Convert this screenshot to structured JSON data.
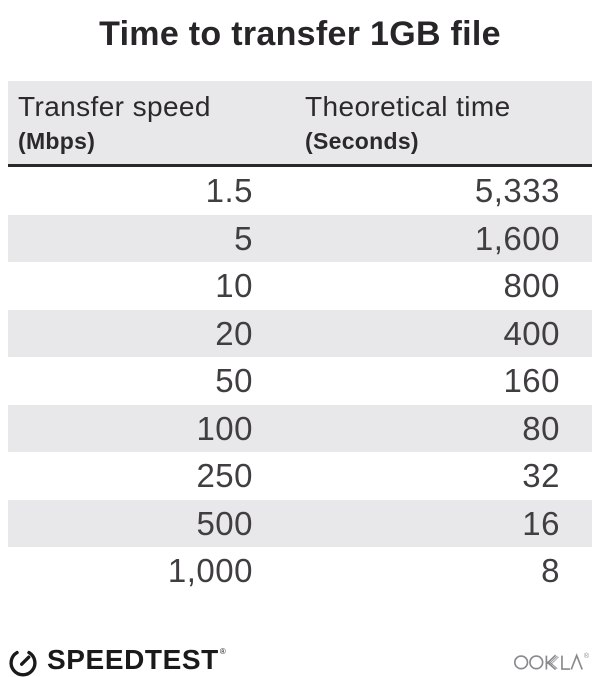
{
  "title": "Time to transfer 1GB file",
  "table": {
    "columns": [
      {
        "label": "Transfer speed",
        "unit": "(Mbps)"
      },
      {
        "label": "Theoretical time",
        "unit": "(Seconds)"
      }
    ],
    "rows": [
      {
        "speed": "1.5",
        "time": "5,333"
      },
      {
        "speed": "5",
        "time": "1,600"
      },
      {
        "speed": "10",
        "time": "800"
      },
      {
        "speed": "20",
        "time": "400"
      },
      {
        "speed": "50",
        "time": "160"
      },
      {
        "speed": "100",
        "time": "80"
      },
      {
        "speed": "250",
        "time": "32"
      },
      {
        "speed": "500",
        "time": "16"
      },
      {
        "speed": "1,000",
        "time": "8"
      }
    ]
  },
  "footer": {
    "speedtest_label": "SPEEDTEST",
    "speedtest_trademark": "®",
    "speedtest_icon": "gauge-icon",
    "ookla_label": "OOKLA",
    "ookla_trademark": "®"
  },
  "colors": {
    "text_dark": "#272528",
    "text_number": "#403e41",
    "row_alt_background": "#e8e7ea",
    "header_background": "#e8e7ea",
    "header_rule": "#2a282b",
    "speedtest_black": "#1b1a1b",
    "ookla_gray": "#8a8a8d"
  },
  "chart_data": {
    "type": "table",
    "title": "Time to transfer 1GB file",
    "columns": [
      "Transfer speed (Mbps)",
      "Theoretical time (Seconds)"
    ],
    "rows": [
      [
        1.5,
        5333
      ],
      [
        5,
        1600
      ],
      [
        10,
        800
      ],
      [
        20,
        400
      ],
      [
        50,
        160
      ],
      [
        100,
        80
      ],
      [
        250,
        32
      ],
      [
        500,
        16
      ],
      [
        1000,
        8
      ]
    ],
    "layout": "two-column table, numeric values right-aligned, alternating light-gray row stripes"
  }
}
